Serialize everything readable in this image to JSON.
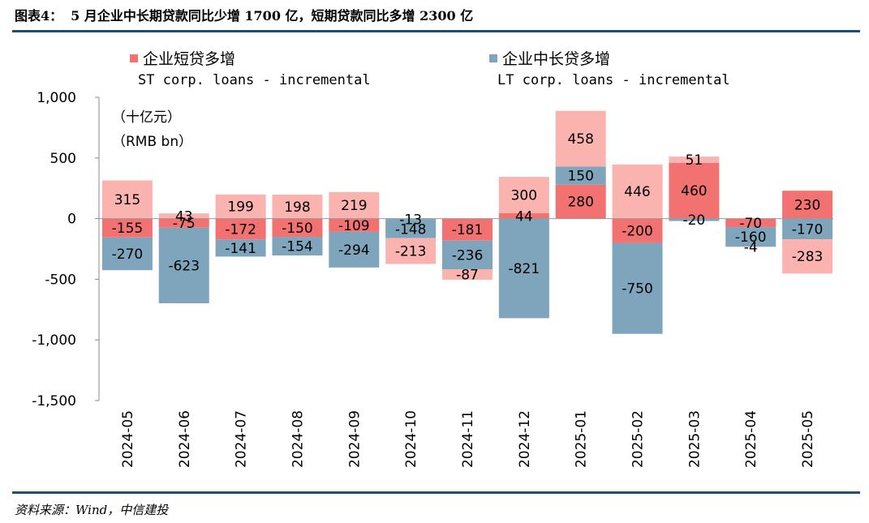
{
  "header": {
    "figure_label": "图表4：",
    "title": "5 月企业中长期贷款同比少增 1700 亿，短期贷款同比多增 2300 亿"
  },
  "legend": {
    "st": {
      "cn": "企业短贷多增",
      "en": "ST corp. loans - incremental"
    },
    "lt": {
      "cn": "企业中长贷多增",
      "en": "LT corp. loans - incremental"
    }
  },
  "unit": {
    "cn": "（十亿元）",
    "en": "（RMB bn）"
  },
  "source": "资料来源：Wind，中信建投",
  "colors": {
    "st_light": "#fbb3b0",
    "st_dark": "#f27271",
    "lt": "#7fa5bd",
    "rule": "#1f4e79"
  },
  "chart_data": {
    "type": "bar",
    "title": "5 月企业中长期贷款同比少增 1700 亿，短期贷款同比多增 2300 亿",
    "ylabel": "（十亿元）（RMB bn）",
    "ylim": [
      -1500,
      1000
    ],
    "yticks": [
      1000,
      500,
      0,
      -500,
      -1000,
      -1500
    ],
    "ytick_labels": [
      "1,000",
      "500",
      "0",
      "-500",
      "-1,000",
      "-1,500"
    ],
    "categories": [
      "2024-05",
      "2024-06",
      "2024-07",
      "2024-08",
      "2024-09",
      "2024-10",
      "2024-11",
      "2024-12",
      "2025-01",
      "2025-02",
      "2025-03",
      "2025-04",
      "2025-05"
    ],
    "series": [
      {
        "name": "企业短贷多增 (current)",
        "values": [
          -155,
          -75,
          -172,
          -150,
          -109,
          0,
          -181,
          44,
          280,
          -200,
          460,
          -70,
          230
        ],
        "labels": [
          "-155",
          "-75",
          "-172",
          "-150",
          "-109",
          "",
          "-181",
          "44",
          "280",
          "-200",
          "460",
          "-70",
          "230"
        ]
      },
      {
        "name": "企业中长贷多增 (current)",
        "values": [
          -270,
          -623,
          -141,
          -154,
          -294,
          -13,
          -236,
          -821,
          150,
          -750,
          -20,
          -160,
          -170
        ],
        "labels": [
          "-270",
          "-623",
          "-141",
          "-154",
          "-294",
          "-13",
          "-236",
          "-821",
          "150",
          "-750",
          "-20",
          "-160",
          "-170"
        ]
      },
      {
        "name": "企业短贷多增 (year-ago comparison)",
        "values": [
          315,
          43,
          199,
          198,
          219,
          -213,
          -87,
          300,
          458,
          446,
          51,
          -4,
          -283
        ],
        "labels": [
          "315",
          "43",
          "199",
          "198",
          "219",
          "-213",
          "-87",
          "300",
          "458",
          "446",
          "51",
          "-4",
          "-283"
        ]
      },
      {
        "name": "企业中长贷多增 (extra)",
        "values": [
          0,
          0,
          0,
          0,
          0,
          -148,
          0,
          0,
          0,
          0,
          0,
          0,
          0
        ],
        "labels": [
          "",
          "",
          "",
          "",
          "",
          "-148",
          "",
          "",
          "",
          "",
          "",
          "",
          ""
        ]
      }
    ]
  }
}
